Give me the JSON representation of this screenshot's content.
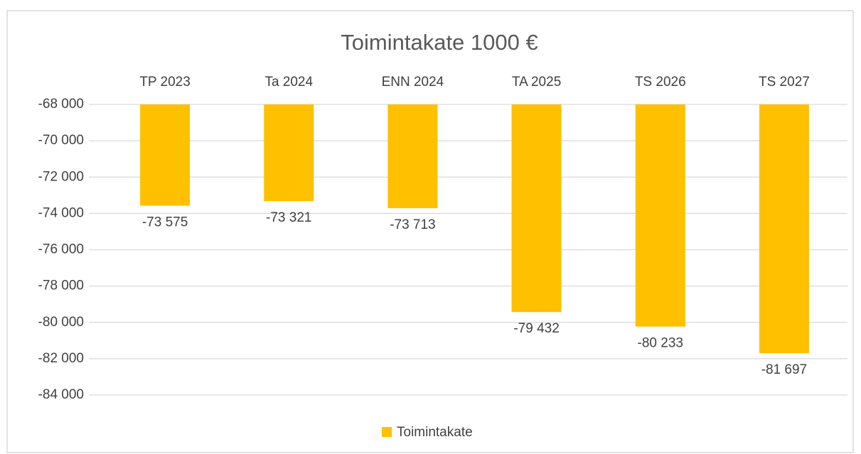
{
  "chart_data": {
    "type": "bar",
    "title": "Toimintakate 1000 €",
    "categories": [
      "TP 2023",
      "Ta 2024",
      "ENN 2024",
      "TA 2025",
      "TS 2026",
      "TS 2027"
    ],
    "series": [
      {
        "name": "Toimintakate",
        "color": "#ffc000",
        "values": [
          -73575,
          -73321,
          -73713,
          -79432,
          -80233,
          -81697
        ],
        "value_labels": [
          "-73 575",
          "-73 321",
          "-73 713",
          "-79 432",
          "-80 233",
          "-81 697"
        ]
      }
    ],
    "ylim": [
      -84000,
      -68000
    ],
    "yticks": [
      {
        "value": -84000,
        "label": "-84 000"
      },
      {
        "value": -82000,
        "label": "-82 000"
      },
      {
        "value": -80000,
        "label": "-80 000"
      },
      {
        "value": -78000,
        "label": "-78 000"
      },
      {
        "value": -76000,
        "label": "-76 000"
      },
      {
        "value": -74000,
        "label": "-74 000"
      },
      {
        "value": -72000,
        "label": "-72 000"
      },
      {
        "value": -70000,
        "label": "-70 000"
      },
      {
        "value": -68000,
        "label": "-68 000"
      }
    ],
    "grid": true,
    "legend": "bottom"
  }
}
